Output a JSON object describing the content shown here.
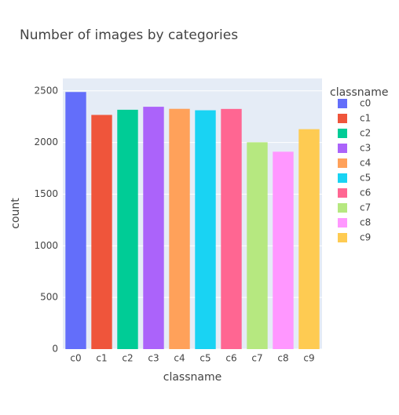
{
  "chart_data": {
    "type": "bar",
    "title": "Number of images by categories",
    "x_label": "classname",
    "y_label": "count",
    "legend_title": "classname",
    "categories": [
      "c0",
      "c1",
      "c2",
      "c3",
      "c4",
      "c5",
      "c6",
      "c7",
      "c8",
      "c9"
    ],
    "values": [
      2489,
      2267,
      2317,
      2346,
      2326,
      2312,
      2325,
      2002,
      1911,
      2129
    ],
    "colors": [
      "#636efa",
      "#ef553b",
      "#00cc96",
      "#ab63fa",
      "#ffa15a",
      "#19d3f3",
      "#ff6692",
      "#b6e880",
      "#ff97ff",
      "#fecb52"
    ],
    "ylim": [
      0,
      2620
    ],
    "yticks": [
      0,
      500,
      1000,
      1500,
      2000,
      2500
    ],
    "grid": true,
    "legend": "right"
  }
}
